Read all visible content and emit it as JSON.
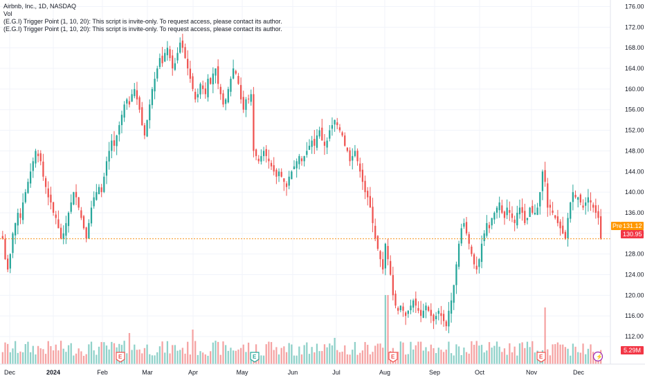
{
  "header": {
    "symbol_line": "Airbnb, Inc., 1D, NASDAQ",
    "vol_label": "Vol",
    "indicator_line_1": "(E.G.I) Trigger Point  (1, 10, 20): This script is invite-only. To request access, please contact its author.",
    "indicator_line_2": "(E.G.I) Trigger Point  (1, 10, 20): This script is invite-only. To request access, please contact its author."
  },
  "price_axis": {
    "ticks": [
      "176.00",
      "172.00",
      "168.00",
      "164.00",
      "160.00",
      "156.00",
      "152.00",
      "148.00",
      "144.00",
      "140.00",
      "136.00",
      "132.00",
      "128.00",
      "124.00",
      "120.00",
      "116.00",
      "112.00"
    ]
  },
  "badges": {
    "pre_label": "Pre",
    "pre_price": "131.12",
    "last_price": "130.95",
    "volume": "5.29M"
  },
  "time_axis": {
    "labels": [
      "Dec",
      "2024",
      "Feb",
      "Mar",
      "Apr",
      "May",
      "Jun",
      "Jul",
      "Aug",
      "Sep",
      "Oct",
      "Nov",
      "Dec"
    ]
  },
  "event_markers": [
    {
      "letter": "E",
      "kind": "earnings-red"
    },
    {
      "letter": "E",
      "kind": "earnings-green"
    },
    {
      "letter": "E",
      "kind": "earnings-red"
    },
    {
      "letter": "E",
      "kind": "earnings-red"
    },
    {
      "letter": "⚡",
      "kind": "lightning"
    }
  ],
  "colors": {
    "up": "#26a69a",
    "down": "#ef5350",
    "up_volume": "#8fd1c9",
    "down_volume": "#f5a3a3",
    "pre_badge": "#ff9800",
    "last_badge": "#f23645",
    "grid": "#f0f3fa"
  },
  "chart_data": {
    "type": "candlestick",
    "symbol": "Airbnb, Inc.",
    "interval": "1D",
    "exchange": "NASDAQ",
    "ylim": [
      110,
      177
    ],
    "last_price": 130.95,
    "pre_market_price": 131.12,
    "volume_last": "5.29M",
    "x_labels": [
      "Dec",
      "2024",
      "Feb",
      "Mar",
      "Apr",
      "May",
      "Jun",
      "Jul",
      "Aug",
      "Sep",
      "Oct",
      "Nov",
      "Dec"
    ],
    "closes": [
      131,
      127,
      125,
      128,
      132,
      134,
      136,
      135,
      138,
      140,
      142,
      144,
      146,
      148,
      147,
      146,
      143,
      141,
      139,
      138,
      136,
      135,
      133,
      131,
      132,
      134,
      136,
      138,
      140,
      139,
      137,
      135,
      133,
      131,
      134,
      137,
      139,
      140,
      141,
      140,
      143,
      146,
      148,
      150,
      149,
      151,
      153,
      155,
      157,
      158,
      157,
      159,
      160,
      158,
      156,
      153,
      151,
      154,
      157,
      160,
      162,
      164,
      166,
      165,
      167,
      168,
      166,
      164,
      165,
      167,
      169,
      168,
      166,
      164,
      162,
      160,
      158,
      159,
      161,
      160,
      159,
      162,
      161,
      163,
      164,
      161,
      159,
      157,
      158,
      160,
      162,
      164,
      163,
      161,
      158,
      156,
      158,
      158,
      159,
      148,
      147,
      146,
      147,
      148,
      147,
      146,
      145,
      144,
      143,
      144,
      143,
      142,
      141,
      143,
      144,
      145,
      146,
      147,
      146,
      147,
      148,
      149,
      150,
      149,
      151,
      152,
      150,
      149,
      150,
      152,
      153,
      154,
      153,
      152,
      151,
      149,
      148,
      146,
      147,
      148,
      146,
      144,
      142,
      140,
      139,
      137,
      134,
      131,
      129,
      127,
      125,
      130,
      127,
      124,
      120,
      118,
      117,
      118,
      117,
      116,
      117,
      118,
      119,
      118,
      117,
      116,
      117,
      118,
      117,
      116,
      115,
      116,
      117,
      116,
      115,
      114,
      117,
      119,
      122,
      126,
      130,
      133,
      134,
      132,
      130,
      128,
      126,
      125,
      127,
      130,
      132,
      134,
      133,
      135,
      136,
      137,
      138,
      136,
      135,
      137,
      136,
      135,
      134,
      136,
      137,
      136,
      134,
      135,
      137,
      136,
      136,
      137,
      140,
      144,
      142,
      137,
      137,
      136,
      135,
      134,
      133,
      132,
      131,
      135,
      138,
      140,
      139,
      139,
      138,
      137,
      138,
      139,
      138,
      137,
      136,
      135,
      131
    ]
  }
}
